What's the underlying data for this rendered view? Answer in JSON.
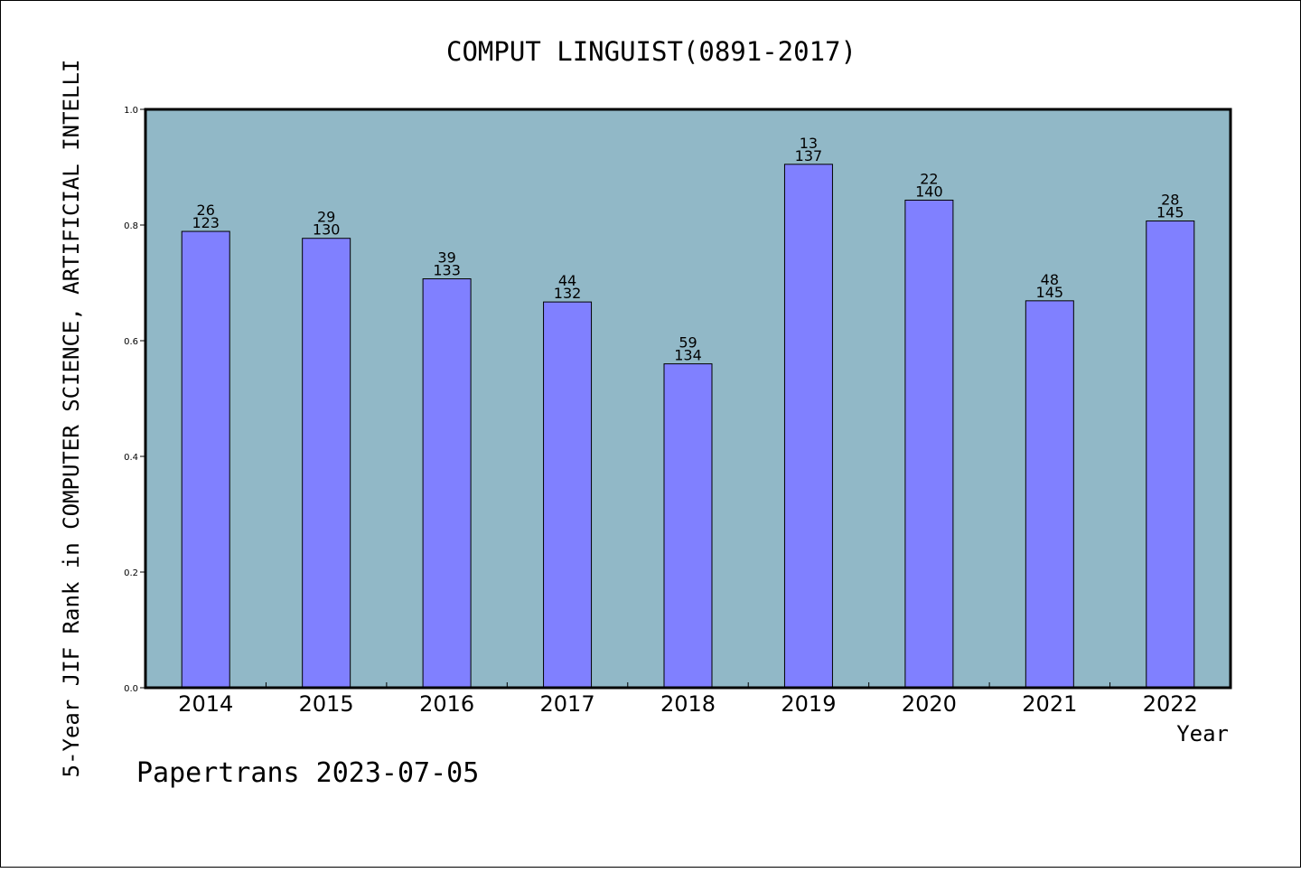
{
  "chart_data": {
    "type": "bar",
    "title": "COMPUT LINGUIST(0891-2017)",
    "xlabel": "Year",
    "ylabel": "5-Year JIF Rank in COMPUTER SCIENCE, ARTIFICIAL INTELLI",
    "ylim": [
      0,
      1.0
    ],
    "yticks": [
      "0.0",
      "0.2",
      "0.4",
      "0.6",
      "0.8",
      "1.0"
    ],
    "categories": [
      "2014",
      "2015",
      "2016",
      "2017",
      "2018",
      "2019",
      "2020",
      "2021",
      "2022"
    ],
    "values": [
      0.789,
      0.777,
      0.707,
      0.667,
      0.56,
      0.905,
      0.843,
      0.669,
      0.807
    ],
    "rank_labels": [
      "26",
      "29",
      "39",
      "44",
      "59",
      "13",
      "22",
      "48",
      "28"
    ],
    "total_labels": [
      "123",
      "130",
      "133",
      "132",
      "134",
      "137",
      "140",
      "145",
      "145"
    ],
    "grid": false,
    "colors": {
      "plot_background": "#91b8c7",
      "bar": "#8080ff",
      "axis": "#000000"
    }
  },
  "footer": {
    "text": "Papertrans 2023-07-05"
  }
}
